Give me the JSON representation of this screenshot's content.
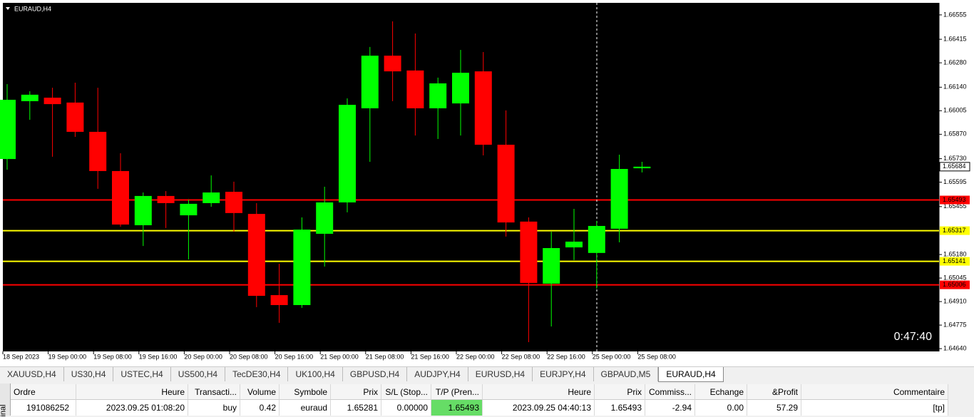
{
  "chart_data": {
    "type": "candlestick",
    "symbol": "EURAUD,H4",
    "countdown": "0:47:40",
    "categories": [
      "18 Sep 2023",
      null,
      "19 Sep 00:00",
      null,
      "19 Sep 08:00",
      null,
      "19 Sep 16:00",
      null,
      "20 Sep 00:00",
      null,
      "20 Sep 08:00",
      null,
      "20 Sep 16:00",
      null,
      "21 Sep 00:00",
      null,
      "21 Sep 08:00",
      null,
      "21 Sep 16:00",
      null,
      "22 Sep 00:00",
      null,
      "22 Sep 08:00",
      null,
      "22 Sep 16:00",
      null,
      "25 Sep 00:00",
      null,
      "25 Sep 08:00"
    ],
    "open": [
      1.65728,
      1.6606,
      1.6608,
      1.66052,
      1.65884,
      1.65659,
      1.65348,
      1.65516,
      1.65405,
      1.65475,
      1.6554,
      1.65413,
      1.64947,
      1.6489,
      1.65299,
      1.65479,
      1.66019,
      1.66321,
      1.66236,
      1.66019,
      1.66047,
      1.66231,
      1.6581,
      1.65369,
      1.65013,
      1.65221,
      1.65189,
      1.65328,
      1.65675
    ],
    "high": [
      1.66158,
      1.66117,
      1.66137,
      1.66166,
      1.66137,
      1.65761,
      1.65536,
      1.65544,
      1.65495,
      1.65634,
      1.65598,
      1.65475,
      1.65127,
      1.65393,
      1.65569,
      1.66076,
      1.66371,
      1.66518,
      1.66448,
      1.66195,
      1.66354,
      1.66342,
      1.66007,
      1.65393,
      1.65311,
      1.65442,
      1.65373,
      1.65753,
      1.65712
    ],
    "low": [
      1.65667,
      1.65953,
      1.65741,
      1.65855,
      1.65557,
      1.6534,
      1.65229,
      1.65332,
      1.65152,
      1.65454,
      1.65311,
      1.64878,
      1.64788,
      1.64874,
      1.65111,
      1.65422,
      1.65712,
      1.6606,
      1.65863,
      1.65843,
      1.65863,
      1.65749,
      1.65283,
      1.64677,
      1.64767,
      1.65148,
      1.64984,
      1.6525,
      1.65651
    ],
    "close": [
      1.66068,
      1.66097,
      1.66043,
      1.65884,
      1.65659,
      1.65352,
      1.65516,
      1.65475,
      1.65471,
      1.65536,
      1.65418,
      1.64943,
      1.6489,
      1.65323,
      1.65479,
      1.66039,
      1.66321,
      1.66231,
      1.66019,
      1.66162,
      1.66223,
      1.6581,
      1.65364,
      1.65017,
      1.65217,
      1.65254,
      1.65344,
      1.65671,
      1.65684
    ],
    "up_color": "#00ff00",
    "down_color": "#ff0000",
    "ylim": [
      1.64624,
      1.6662
    ],
    "yticks": [
      1.66555,
      1.66415,
      {
        "value": 1.6628,
        "label": "1.66280"
      },
      {
        "value": 1.6614,
        "label": "1.66140"
      },
      1.66005,
      {
        "value": 1.6587,
        "label": "1.65870"
      },
      {
        "value": 1.6573,
        "label": "1.65730"
      },
      1.65595,
      1.65455,
      {
        "value": 1.6518,
        "label": "1.65180"
      },
      1.65045,
      {
        "value": 1.6491,
        "label": "1.64910"
      },
      1.64775,
      {
        "value": 1.6464,
        "label": "1.64640"
      }
    ],
    "current_price": 1.65684,
    "levels": [
      {
        "value": 1.65493,
        "color": "#ff0000"
      },
      {
        "value": 1.65317,
        "color": "#ffff00"
      },
      {
        "value": 1.65141,
        "color": "#ffff00"
      },
      {
        "value": 1.65006,
        "color": "#ff0000"
      }
    ]
  },
  "tabs": [
    {
      "label": "XAUUSD,H4"
    },
    {
      "label": "US30,H4"
    },
    {
      "label": "USTEC,H4"
    },
    {
      "label": "US500,H4"
    },
    {
      "label": "TecDE30,H4"
    },
    {
      "label": "UK100,H4"
    },
    {
      "label": "GBPUSD,H4"
    },
    {
      "label": "AUDJPY,H4"
    },
    {
      "label": "EURUSD,H4"
    },
    {
      "label": "EURJPY,H4"
    },
    {
      "label": "GBPAUD,M5"
    },
    {
      "label": "EURAUD,H4",
      "active": true
    }
  ],
  "side_label": "inal",
  "table": {
    "headers": [
      "Ordre",
      "Heure",
      "Transacti...",
      "Volume",
      "Symbole",
      "Prix",
      "S/L (Stop...",
      "T/P (Pren...",
      "Heure",
      "Prix",
      "Commiss...",
      "Echange",
      "&Profit",
      "Commentaire"
    ],
    "rows": [
      [
        "191086252",
        "2023.09.25 01:08:20",
        "buy",
        "0.42",
        "euraud",
        "1.65281",
        "0.00000",
        "1.65493",
        "2023.09.25 04:40:13",
        "1.65493",
        "-2.94",
        "0.00",
        "57.29",
        "[tp]"
      ]
    ]
  }
}
